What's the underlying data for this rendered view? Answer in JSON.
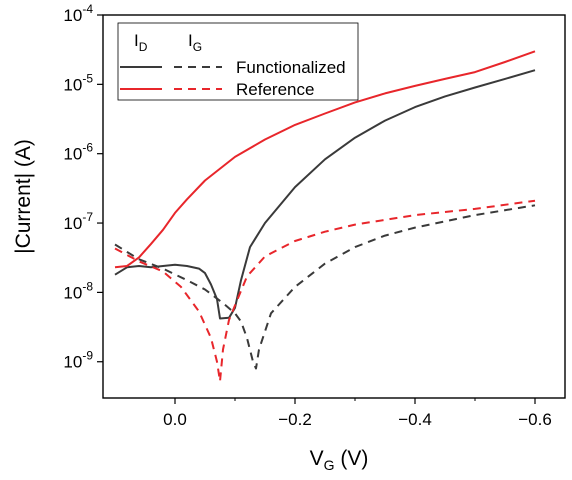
{
  "chart_data": {
    "type": "line",
    "xlabel": "V",
    "xlabel_sub": "G",
    "xlabel_unit": " (V)",
    "ylabel": "|Current| (A)",
    "x_reversed": true,
    "xlim": [
      -0.65,
      0.12
    ],
    "ylim": [
      3e-10,
      0.0001
    ],
    "y_scale": "log",
    "x_ticks": [
      0.0,
      -0.2,
      -0.4,
      -0.6
    ],
    "x_tick_labels": [
      "0.0",
      "−0.2",
      "−0.4",
      "−0.6"
    ],
    "y_ticks": [
      1e-09,
      1e-08,
      1e-07,
      1e-06,
      1e-05,
      0.0001
    ],
    "y_tick_labels": [
      {
        "base": "10",
        "exp": "-9"
      },
      {
        "base": "10",
        "exp": "-8"
      },
      {
        "base": "10",
        "exp": "-7"
      },
      {
        "base": "10",
        "exp": "-6"
      },
      {
        "base": "10",
        "exp": "-5"
      },
      {
        "base": "10",
        "exp": "-4"
      }
    ],
    "legend": {
      "position": "top-left",
      "headers": [
        {
          "base": "I",
          "sub": "D"
        },
        {
          "base": "I",
          "sub": "G"
        }
      ],
      "rows": [
        {
          "label": "Functionalized",
          "color": "#3a3a3a"
        },
        {
          "label": "Reference",
          "color": "#e8262b"
        }
      ]
    },
    "series": [
      {
        "name": "Functionalized",
        "quantity": "I_D",
        "color": "#3a3a3a",
        "dash": false,
        "x": [
          0.1,
          0.08,
          0.06,
          0.04,
          0.0,
          -0.02,
          -0.04,
          -0.05,
          -0.06,
          -0.07,
          -0.075,
          -0.09,
          -0.1,
          -0.11,
          -0.125,
          -0.15,
          -0.2,
          -0.25,
          -0.3,
          -0.35,
          -0.4,
          -0.45,
          -0.5,
          -0.55,
          -0.6
        ],
        "y": [
          1.8e-08,
          2.3e-08,
          2.4e-08,
          2.3e-08,
          2.5e-08,
          2.4e-08,
          2.2e-08,
          1.9e-08,
          1.3e-08,
          8e-09,
          4.2e-09,
          4.3e-09,
          6e-09,
          1.5e-08,
          4.5e-08,
          1e-07,
          3.3e-07,
          8.3e-07,
          1.7e-06,
          3e-06,
          4.7e-06,
          6.7e-06,
          9e-06,
          1.2e-05,
          1.6e-05
        ]
      },
      {
        "name": "Functionalized",
        "quantity": "I_G",
        "color": "#3a3a3a",
        "dash": true,
        "x": [
          0.1,
          0.06,
          0.02,
          -0.02,
          -0.05,
          -0.08,
          -0.1,
          -0.11,
          -0.12,
          -0.13,
          -0.135,
          -0.14,
          -0.16,
          -0.2,
          -0.25,
          -0.3,
          -0.35,
          -0.4,
          -0.5,
          -0.6
        ],
        "y": [
          4.9e-08,
          3e-08,
          2.2e-08,
          1.5e-08,
          1.1e-08,
          7e-09,
          5e-09,
          3.8e-09,
          2.2e-09,
          1e-09,
          8e-10,
          1.5e-09,
          5e-09,
          1.2e-08,
          2.6e-08,
          4.5e-08,
          6.6e-08,
          8.6e-08,
          1.3e-07,
          1.8e-07
        ]
      },
      {
        "name": "Reference",
        "quantity": "I_D",
        "color": "#e8262b",
        "dash": false,
        "x": [
          0.1,
          0.08,
          0.06,
          0.04,
          0.02,
          0.0,
          -0.02,
          -0.05,
          -0.1,
          -0.15,
          -0.2,
          -0.25,
          -0.3,
          -0.35,
          -0.4,
          -0.45,
          -0.5,
          -0.55,
          -0.6
        ],
        "y": [
          2.3e-08,
          2.4e-08,
          3.2e-08,
          5e-08,
          8e-08,
          1.4e-07,
          2.2e-07,
          4.1e-07,
          9e-07,
          1.6e-06,
          2.6e-06,
          3.8e-06,
          5.5e-06,
          7.4e-06,
          9.5e-06,
          1.2e-05,
          1.5e-05,
          2.1e-05,
          3e-05
        ]
      },
      {
        "name": "Reference",
        "quantity": "I_G",
        "color": "#e8262b",
        "dash": true,
        "x": [
          0.1,
          0.06,
          0.02,
          -0.01,
          -0.04,
          -0.06,
          -0.07,
          -0.075,
          -0.08,
          -0.09,
          -0.1,
          -0.12,
          -0.15,
          -0.2,
          -0.25,
          -0.3,
          -0.4,
          -0.5,
          -0.6
        ],
        "y": [
          4.3e-08,
          2.8e-08,
          2e-08,
          1.2e-08,
          5.3e-09,
          2.2e-09,
          1e-09,
          5.2e-10,
          1.5e-09,
          4e-09,
          6.5e-09,
          1.7e-08,
          3.3e-08,
          5.5e-08,
          7.5e-08,
          9.5e-08,
          1.3e-07,
          1.6e-07,
          2.1e-07
        ]
      }
    ]
  }
}
